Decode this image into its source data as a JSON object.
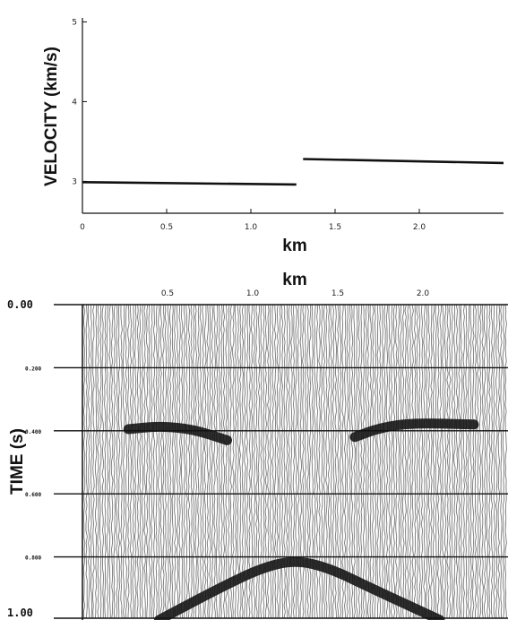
{
  "chart_data": [
    {
      "type": "line",
      "ylabel": "VELOCITY (km/s)",
      "xlabel": "km",
      "xlim": [
        0,
        2.5
      ],
      "ylim": [
        2.6,
        5.05
      ],
      "x_ticks": [
        0,
        0.5,
        1.0,
        1.5,
        2.0
      ],
      "x_tick_labels": [
        "0",
        "0.5",
        "1.0",
        "1.5",
        "2.0"
      ],
      "y_ticks": [
        3,
        4,
        5
      ],
      "y_tick_labels": [
        "3",
        "4",
        "5"
      ],
      "grid": false,
      "series": [
        {
          "x": [
            0.0,
            1.27
          ],
          "y": [
            2.99,
            2.96
          ]
        },
        {
          "x": [
            1.31,
            2.5
          ],
          "y": [
            3.28,
            3.23
          ]
        }
      ]
    },
    {
      "type": "heatmap",
      "xlabel": "km",
      "ylabel": "TIME (s)",
      "xlim": [
        0,
        2.5
      ],
      "ylim": [
        0.0,
        1.0
      ],
      "x_ticks": [
        0.5,
        1.0,
        1.5,
        2.0
      ],
      "x_tick_labels": [
        "0.5",
        "1.0",
        "1.5",
        "2.0"
      ],
      "y_ticks": [
        0.0,
        0.2,
        0.4,
        0.6,
        0.8,
        1.0
      ],
      "y_tick_labels": [
        "0.00",
        "0.200",
        "0.400",
        "0.600",
        "0.800",
        "1.00"
      ],
      "grid": true,
      "events": [
        {
          "x": [
            0.27,
            0.45,
            0.65,
            0.85
          ],
          "y": [
            0.395,
            0.385,
            0.395,
            0.43
          ]
        },
        {
          "x": [
            1.6,
            1.75,
            1.95,
            2.3
          ],
          "y": [
            0.42,
            0.39,
            0.375,
            0.38
          ]
        },
        {
          "x": [
            0.45,
            0.8,
            1.05,
            1.25,
            1.45,
            1.7,
            2.1
          ],
          "y": [
            1.0,
            0.9,
            0.835,
            0.81,
            0.835,
            0.9,
            1.0
          ]
        }
      ]
    }
  ]
}
